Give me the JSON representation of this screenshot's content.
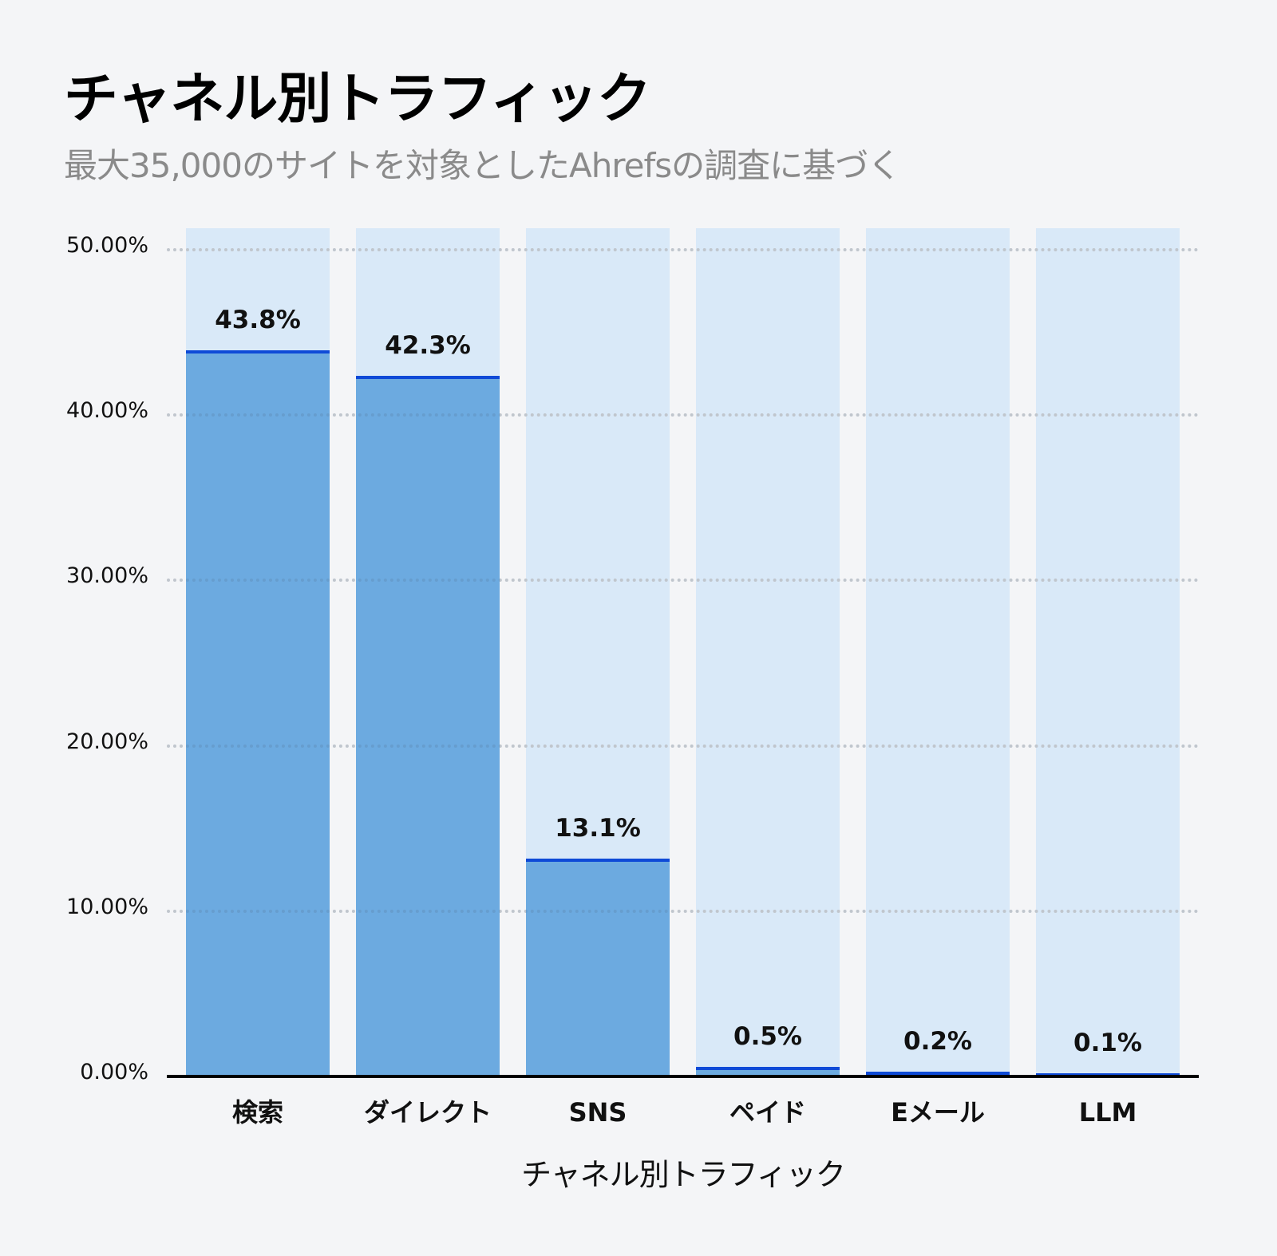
{
  "header": {
    "title": "チャネル別トラフィック",
    "subtitle": "最大35,000のサイトを対象としたAhrefsの調査に基づく"
  },
  "colors": {
    "background": "#f4f5f7",
    "bar_background": "#d9e9f8",
    "bar_fill": "#6caae0",
    "bar_top_line": "#0e4ad7",
    "axis": "#000000",
    "subtitle": "#8a8a8a"
  },
  "chart_data": {
    "type": "bar",
    "title": "チャネル別トラフィック",
    "subtitle": "最大35,000のサイトを対象としたAhrefsの調査に基づく",
    "xlabel": "チャネル別トラフィック",
    "ylabel": "",
    "categories": [
      "検索",
      "ダイレクト",
      "SNS",
      "ペイド",
      "Eメール",
      "LLM"
    ],
    "values": [
      43.8,
      42.3,
      13.1,
      0.5,
      0.2,
      0.1
    ],
    "value_labels": [
      "43.8%",
      "42.3%",
      "13.1%",
      "0.5%",
      "0.2%",
      "0.1%"
    ],
    "ylim": [
      0,
      50
    ],
    "yticks": [
      "0.00%",
      "10.00%",
      "20.00%",
      "30.00%",
      "40.00%",
      "50.00%"
    ],
    "grid": true,
    "legend": null
  }
}
